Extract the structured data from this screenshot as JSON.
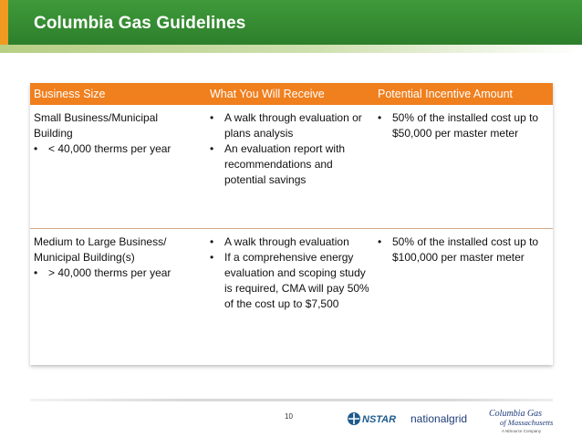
{
  "header": {
    "title": "Columbia Gas Guidelines",
    "accent_color": "#f09a22",
    "bar_color": "#2d7f2b"
  },
  "table": {
    "header_color": "#f07f1e",
    "columns": [
      "Business Size",
      "What  You Will Receive",
      "Potential Incentive Amount"
    ],
    "rows": [
      {
        "size": [
          "Small Business/Municipal",
          "Building"
        ],
        "size_bullets": [
          "< 40,000 therms per year"
        ],
        "receive": [
          "A walk through evaluation or plans analysis",
          "An evaluation report with recommendations and potential savings"
        ],
        "incentive": [
          "50% of the installed cost up to $50,000 per master meter"
        ]
      },
      {
        "size": [
          "Medium to Large Business/",
          "Municipal Building(s)"
        ],
        "size_bullets": [
          "> 40,000 therms per year"
        ],
        "receive": [
          "A walk through evaluation",
          "If a comprehensive energy evaluation and scoping study is required, CMA will pay 50%  of the cost up to $7,500"
        ],
        "incentive": [
          "50% of the installed cost up to $100,000 per master meter"
        ]
      }
    ]
  },
  "footer": {
    "page_number": "10",
    "logos": [
      {
        "name": "NSTAR",
        "text": "NSTAR",
        "icon": "nstar-logo-icon"
      },
      {
        "name": "national grid",
        "text": "nationalgrid",
        "icon": "nationalgrid-logo-icon"
      },
      {
        "name": "Columbia Gas of Massachusetts",
        "text": "Columbia Gas",
        "subtext": "of Massachusetts",
        "tagline": "A NiSource Company",
        "icon": "columbia-gas-logo-icon"
      }
    ]
  }
}
